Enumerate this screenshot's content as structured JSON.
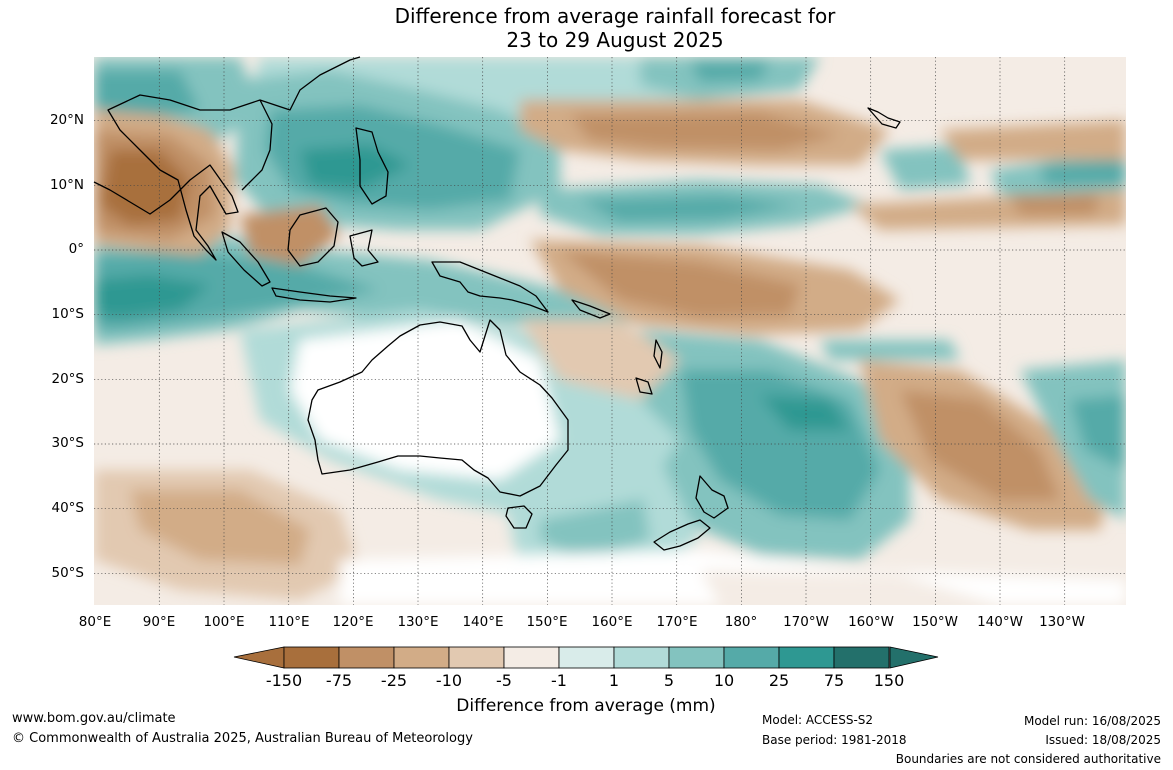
{
  "title_line1": "Difference from average rainfall forecast for",
  "title_line2": "23 to 29 August 2025",
  "lat_labels": [
    "20°N",
    "10°N",
    "0°",
    "10°S",
    "20°S",
    "30°S",
    "40°S",
    "50°S"
  ],
  "lon_labels": [
    "80°E",
    "90°E",
    "100°E",
    "110°E",
    "120°E",
    "130°E",
    "140°E",
    "150°E",
    "160°E",
    "170°E",
    "180°",
    "170°W",
    "160°W",
    "150°W",
    "140°W",
    "130°W"
  ],
  "colorbar": {
    "labels": [
      "-150",
      "-75",
      "-25",
      "-10",
      "-5",
      "-1",
      "1",
      "5",
      "10",
      "25",
      "75",
      "150"
    ],
    "colors": [
      "#a86f3c",
      "#c09066",
      "#d2ac87",
      "#e2c9b1",
      "#f4ece5",
      "#ffffff",
      "#d9ecea",
      "#b1dbd8",
      "#83c3bf",
      "#55aaa8",
      "#2e9892",
      "#23706b"
    ],
    "title": "Difference from average (mm)"
  },
  "footer": {
    "url": "www.bom.gov.au/climate",
    "copyright": "© Commonwealth of Australia 2025, Australian Bureau of Meteorology",
    "model": "Model: ACCESS-S2",
    "base_period": "Base period: 1981-2018",
    "model_run": "Model run: 16/08/2025",
    "issued": "Issued: 18/08/2025",
    "disclaimer": "Boundaries are not considered authoritative"
  }
}
